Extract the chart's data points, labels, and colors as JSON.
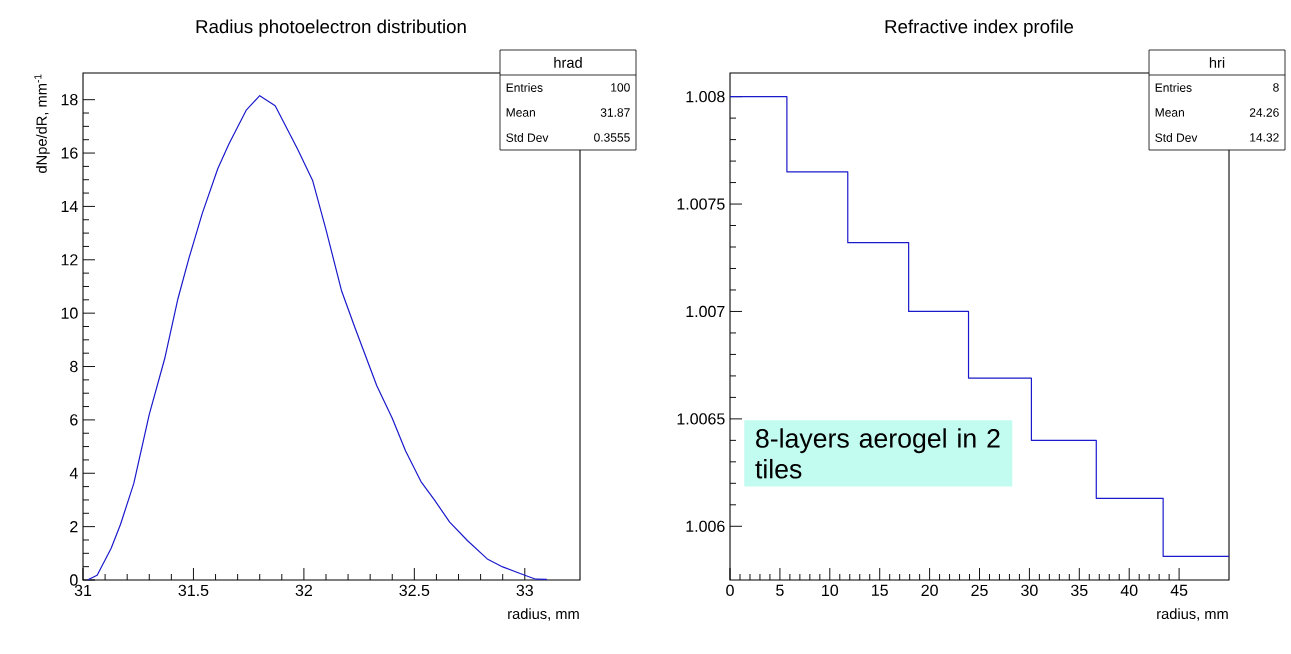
{
  "chart_data": [
    {
      "type": "line",
      "title": "Radius photoelectron distribution",
      "xlabel": "radius, mm",
      "ylabel": "dNpe/dR, mm$^{-1}$",
      "color": "#1a1acc",
      "x": [
        31.02,
        31.064,
        31.127,
        31.17,
        31.23,
        31.3,
        31.37,
        31.43,
        31.48,
        31.54,
        31.61,
        31.66,
        31.74,
        31.8,
        31.87,
        31.97,
        32.04,
        32.1,
        32.17,
        32.23,
        32.27,
        32.33,
        32.4,
        32.46,
        32.53,
        32.59,
        32.66,
        32.74,
        32.83,
        32.9,
        33.0,
        33.05,
        33.1
      ],
      "values": [
        0,
        0.18,
        1.18,
        2.09,
        3.62,
        6.21,
        8.3,
        10.55,
        12.07,
        13.74,
        15.41,
        16.33,
        17.62,
        18.15,
        17.77,
        16.17,
        14.96,
        13.13,
        10.85,
        9.48,
        8.6,
        7.28,
        6.06,
        4.84,
        3.69,
        3.01,
        2.17,
        1.48,
        0.79,
        0.49,
        0.18,
        0.03,
        0.02
      ],
      "xlim": [
        31,
        33.25
      ],
      "ylim": [
        0,
        19
      ],
      "xticks": [
        31,
        31.5,
        32,
        32.5,
        33
      ],
      "yticks": [
        0,
        2,
        4,
        6,
        8,
        10,
        12,
        14,
        16,
        18
      ],
      "annotations": [
        "hrad",
        "Entries",
        "100",
        "Mean",
        "31.87",
        "Std Dev",
        "0.3555"
      ]
    },
    {
      "type": "histogram",
      "title": "Refractive index profile",
      "xlabel": "radius, mm",
      "color": "#1a1acc",
      "bins": [
        0,
        5.7,
        11.8,
        17.9,
        23.9,
        30.2,
        36.7,
        43.4,
        50
      ],
      "values": [
        1.008,
        1.00765,
        1.00732,
        1.007,
        1.00669,
        1.0064,
        1.00613,
        1.00586
      ],
      "xlim": [
        0,
        50
      ],
      "ylim": [
        1.00575,
        1.00811
      ],
      "xticks": [
        0,
        5,
        10,
        15,
        20,
        25,
        30,
        35,
        40,
        45
      ],
      "yticks": [
        1.006,
        1.0065,
        1.007,
        1.0075,
        1.008
      ],
      "annotations": [
        "hri",
        "Entries",
        "8",
        "Mean",
        "24.26",
        "Std Dev",
        "14.32",
        "8-layers aerogel in 2 tiles"
      ]
    }
  ]
}
